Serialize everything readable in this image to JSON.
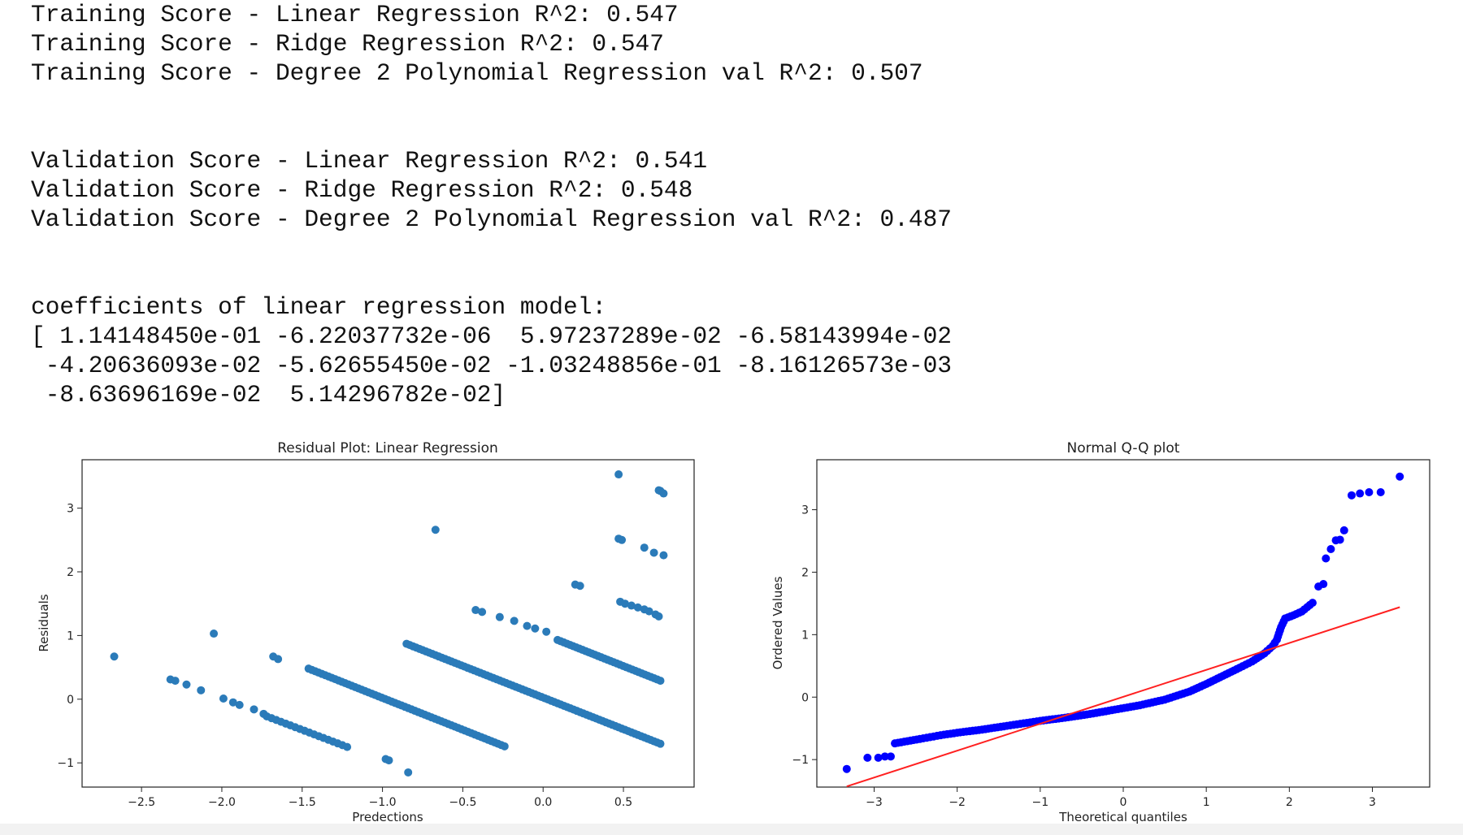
{
  "console": {
    "lines": [
      "Training Score - Linear Regression R^2: 0.547",
      "Training Score - Ridge Regression R^2: 0.547",
      "Training Score - Degree 2 Polynomial Regression val R^2: 0.507",
      "",
      "",
      "Validation Score - Linear Regression R^2: 0.541",
      "Validation Score - Ridge Regression R^2: 0.548",
      "Validation Score - Degree 2 Polynomial Regression val R^2: 0.487",
      "",
      "",
      "coefficients of linear regression model:",
      "[ 1.14148450e-01 -6.22037732e-06  5.97237289e-02 -6.58143994e-02",
      " -4.20636093e-02 -5.62655450e-02 -1.03248856e-01 -8.16126573e-03",
      " -8.63696169e-02  5.14296782e-02]"
    ]
  },
  "chart_data": [
    {
      "type": "scatter",
      "title": "Residual Plot: Linear Regression",
      "xlabel": "Predections",
      "ylabel": "Residuals",
      "xlim": [
        -2.87,
        0.94
      ],
      "ylim": [
        -1.38,
        3.76
      ],
      "xticks": [
        -2.5,
        -2.0,
        -1.5,
        -1.0,
        -0.5,
        0.0,
        0.5
      ],
      "xtick_labels": [
        "−2.5",
        "−2.0",
        "−1.5",
        "−1.0",
        "−0.5",
        "0.0",
        "0.5"
      ],
      "yticks": [
        -1,
        0,
        1,
        2,
        3
      ],
      "ytick_labels": [
        "−1",
        "0",
        "1",
        "2",
        "3"
      ],
      "color": "#2b7bb9",
      "points": [
        [
          -2.67,
          0.67
        ],
        [
          -2.05,
          1.03
        ],
        [
          -0.67,
          2.66
        ],
        [
          0.47,
          3.53
        ],
        [
          0.73,
          3.27
        ],
        [
          0.75,
          3.23
        ],
        [
          0.72,
          3.28
        ],
        [
          0.47,
          2.52
        ],
        [
          0.49,
          2.5
        ],
        [
          0.63,
          2.38
        ],
        [
          0.69,
          2.3
        ],
        [
          0.75,
          2.26
        ],
        [
          0.2,
          1.8
        ],
        [
          0.23,
          1.78
        ],
        [
          0.48,
          1.53
        ],
        [
          0.51,
          1.5
        ],
        [
          0.55,
          1.47
        ],
        [
          0.59,
          1.44
        ],
        [
          0.63,
          1.41
        ],
        [
          0.66,
          1.38
        ],
        [
          0.7,
          1.33
        ],
        [
          0.72,
          1.3
        ],
        [
          -0.42,
          1.4
        ],
        [
          -0.38,
          1.37
        ],
        [
          -0.27,
          1.29
        ],
        [
          -0.18,
          1.23
        ],
        [
          -0.1,
          1.15
        ],
        [
          -0.05,
          1.11
        ],
        [
          0.02,
          1.06
        ],
        [
          -1.68,
          0.67
        ],
        [
          -1.65,
          0.63
        ],
        [
          -2.32,
          0.31
        ],
        [
          -2.29,
          0.29
        ],
        [
          -2.22,
          0.23
        ],
        [
          -2.13,
          0.14
        ],
        [
          -1.99,
          0.01
        ],
        [
          -1.93,
          -0.05
        ],
        [
          -1.89,
          -0.09
        ],
        [
          -1.8,
          -0.16
        ],
        [
          -1.74,
          -0.23
        ],
        [
          -0.98,
          -0.94
        ],
        [
          -0.96,
          -0.96
        ],
        [
          -0.84,
          -1.15
        ]
      ],
      "stripes": [
        {
          "x0": -1.72,
          "y0": -0.27,
          "x1": -1.22,
          "y1": -0.75,
          "n": 18
        },
        {
          "x0": -1.46,
          "y0": 0.48,
          "x1": -0.24,
          "y1": -0.74,
          "n": 60
        },
        {
          "x0": -0.85,
          "y0": 0.87,
          "x1": 0.73,
          "y1": -0.7,
          "n": 80
        },
        {
          "x0": 0.09,
          "y0": 0.93,
          "x1": 0.73,
          "y1": 0.29,
          "n": 34
        }
      ]
    },
    {
      "type": "scatter",
      "title": "Normal Q-Q plot",
      "xlabel": "Theoretical quantiles",
      "ylabel": "Ordered Values",
      "xlim": [
        -3.69,
        3.69
      ],
      "ylim": [
        -1.44,
        3.8
      ],
      "xticks": [
        -3,
        -2,
        -1,
        0,
        1,
        2,
        3
      ],
      "xtick_labels": [
        "−3",
        "−2",
        "−1",
        "0",
        "1",
        "2",
        "3"
      ],
      "yticks": [
        -1,
        0,
        1,
        2,
        3
      ],
      "ytick_labels": [
        "−1",
        "0",
        "1",
        "2",
        "3"
      ],
      "color": "#0000ff",
      "line_color": "#ff2020",
      "fit_line": {
        "x": [
          -3.33,
          3.33
        ],
        "y": [
          -1.43,
          1.44
        ]
      },
      "curve": [
        [
          -2.75,
          -0.74
        ],
        [
          -2.45,
          -0.67
        ],
        [
          -2.2,
          -0.61
        ],
        [
          -2.0,
          -0.57
        ],
        [
          -1.7,
          -0.52
        ],
        [
          -1.4,
          -0.46
        ],
        [
          -1.2,
          -0.42
        ],
        [
          -1.0,
          -0.38
        ],
        [
          -0.7,
          -0.33
        ],
        [
          -0.4,
          -0.27
        ],
        [
          -0.1,
          -0.2
        ],
        [
          0.2,
          -0.13
        ],
        [
          0.5,
          -0.04
        ],
        [
          0.8,
          0.09
        ],
        [
          1.0,
          0.21
        ],
        [
          1.2,
          0.34
        ],
        [
          1.4,
          0.47
        ],
        [
          1.55,
          0.57
        ],
        [
          1.7,
          0.7
        ],
        [
          1.8,
          0.82
        ],
        [
          1.85,
          0.92
        ],
        [
          1.9,
          1.12
        ],
        [
          1.95,
          1.26
        ],
        [
          2.05,
          1.31
        ],
        [
          2.15,
          1.37
        ],
        [
          2.28,
          1.51
        ]
      ],
      "points": [
        [
          -3.33,
          -1.15
        ],
        [
          -3.08,
          -0.97
        ],
        [
          -2.95,
          -0.97
        ],
        [
          -2.87,
          -0.95
        ],
        [
          -2.8,
          -0.95
        ],
        [
          2.35,
          1.77
        ],
        [
          2.41,
          1.81
        ],
        [
          2.44,
          2.22
        ],
        [
          2.5,
          2.37
        ],
        [
          2.56,
          2.51
        ],
        [
          2.61,
          2.52
        ],
        [
          2.66,
          2.67
        ],
        [
          2.75,
          3.23
        ],
        [
          2.85,
          3.26
        ],
        [
          2.96,
          3.28
        ],
        [
          3.1,
          3.28
        ],
        [
          3.33,
          3.53
        ]
      ]
    }
  ]
}
